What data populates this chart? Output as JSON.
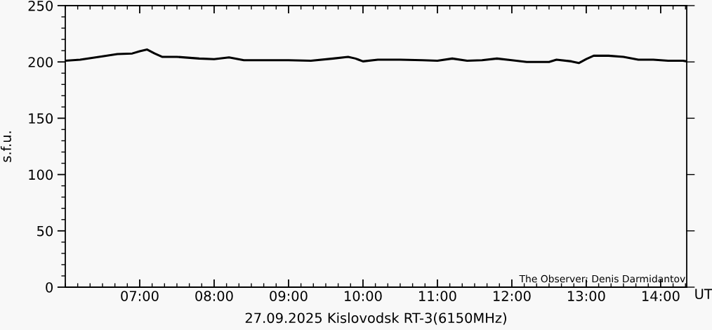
{
  "chart_data": {
    "type": "line",
    "xlabel": "27.09.2025 Kislovodsk RT-3(6150MHz)",
    "ylabel": "s.f.u.",
    "annotations": [
      "The Observer: Denis Darmidantov",
      "UT"
    ],
    "x": [
      6.0,
      6.2,
      6.5,
      6.7,
      6.9,
      7.0,
      7.1,
      7.2,
      7.3,
      7.5,
      7.8,
      8.0,
      8.2,
      8.4,
      8.8,
      9.0,
      9.3,
      9.6,
      9.8,
      9.9,
      10.0,
      10.2,
      10.5,
      10.8,
      11.0,
      11.2,
      11.4,
      11.6,
      11.8,
      12.0,
      12.2,
      12.5,
      12.6,
      12.8,
      12.9,
      13.0,
      13.1,
      13.3,
      13.5,
      13.7,
      13.9,
      14.1,
      14.3,
      14.35
    ],
    "series": [
      {
        "color": "#000000",
        "values": [
          201,
          202,
          205,
          207,
          207.5,
          209.5,
          211,
          207.5,
          204.5,
          204.5,
          203,
          202.5,
          204,
          201.5,
          201.5,
          201.5,
          201,
          203,
          204.5,
          203,
          200.5,
          202,
          202,
          201.5,
          201,
          203,
          201,
          201.5,
          203,
          201.5,
          200,
          200,
          202,
          200.5,
          199,
          202.5,
          205.5,
          205.5,
          204.5,
          202,
          202,
          201,
          201,
          200.5
        ]
      }
    ],
    "xlim": [
      6.0,
      14.35
    ],
    "xticks": [
      {
        "value": 7,
        "label": "07:00"
      },
      {
        "value": 8,
        "label": "08:00"
      },
      {
        "value": 9,
        "label": "09:00"
      },
      {
        "value": 10,
        "label": "10:00"
      },
      {
        "value": 11,
        "label": "11:00"
      },
      {
        "value": 12,
        "label": "12:00"
      },
      {
        "value": 13,
        "label": "13:00"
      },
      {
        "value": 14,
        "label": "14:00"
      }
    ],
    "ylim": [
      0,
      250
    ],
    "yticks": [
      0,
      50,
      100,
      150,
      200,
      250
    ],
    "grid": false,
    "legend": false,
    "marker": "none",
    "line_style": "solid"
  }
}
